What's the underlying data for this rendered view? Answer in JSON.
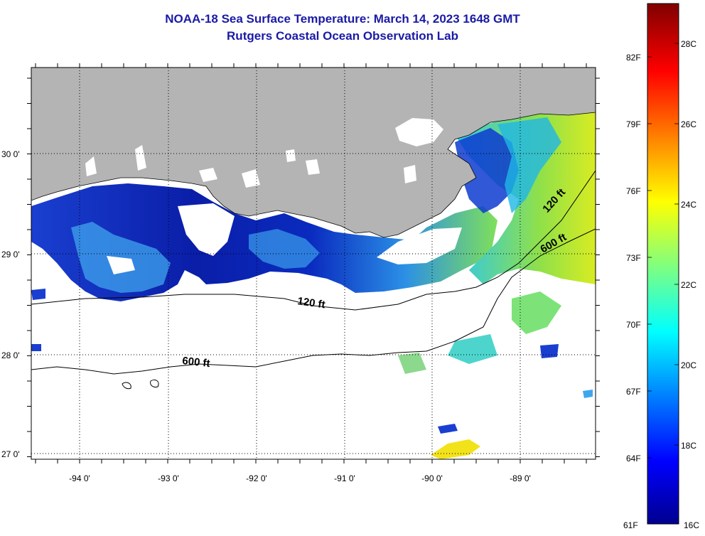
{
  "header": {
    "title": "NOAA-18 Sea Surface Temperature:  March 14, 2023 1648 GMT",
    "subtitle": "Rutgers Coastal Ocean Observation Lab"
  },
  "axes": {
    "lat_labels": [
      "30 0'",
      "29 0'",
      "28 0'",
      "27 0'"
    ],
    "lon_labels": [
      "-94 0'",
      "-93 0'",
      "-92 0'",
      "-91 0'",
      "-90 0'",
      "-89 0'"
    ]
  },
  "contours": {
    "label_120": "120 ft",
    "label_600": "600 ft"
  },
  "colorbar": {
    "fahrenheit": [
      "82F",
      "79F",
      "76F",
      "73F",
      "70F",
      "67F",
      "64F",
      "61F"
    ],
    "celsius": [
      "28C",
      "26C",
      "24C",
      "22C",
      "20C",
      "18C",
      "16C"
    ]
  },
  "colors": {
    "land": "#b4b4b4",
    "no_data": "#ffffff",
    "title": "#1a1aa6"
  }
}
